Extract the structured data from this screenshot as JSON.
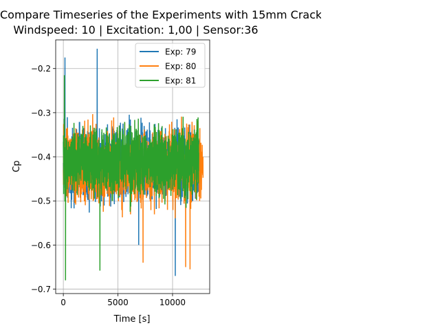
{
  "chart_data": {
    "type": "line",
    "title": "Compare Timeseries of the Experiments with 15mm Crack",
    "subtitle": "Windspeed: 10 | Excitation: 1,00 | Sensor:36",
    "xlabel": "Time [s]",
    "ylabel": "Cp",
    "xlim": [
      -700,
      13400
    ],
    "ylim": [
      -0.71,
      -0.135
    ],
    "xticks": [
      0,
      5000,
      10000
    ],
    "xtick_labels": [
      "0",
      "5000",
      "10000"
    ],
    "yticks": [
      -0.7,
      -0.6,
      -0.5,
      -0.4,
      -0.3,
      -0.2
    ],
    "ytick_labels": [
      "−0.7",
      "−0.6",
      "−0.5",
      "−0.4",
      "−0.3",
      "−0.2"
    ],
    "grid": true,
    "legend_position": "top-right",
    "series": [
      {
        "name": "Exp: 79",
        "color": "#1f77b4",
        "x_range": [
          0,
          12500
        ],
        "mean": -0.415,
        "amplitude": 0.11,
        "extremes": [
          {
            "x": 150,
            "y": -0.175
          },
          {
            "x": 3100,
            "y": -0.155
          },
          {
            "x": 10250,
            "y": -0.67
          },
          {
            "x": 6900,
            "y": -0.6
          }
        ]
      },
      {
        "name": "Exp: 80",
        "color": "#ff7f0e",
        "x_range": [
          0,
          12800
        ],
        "mean": -0.42,
        "amplitude": 0.11,
        "extremes": [
          {
            "x": 7300,
            "y": -0.64
          },
          {
            "x": 11200,
            "y": -0.65
          },
          {
            "x": 11600,
            "y": -0.655
          },
          {
            "x": 12500,
            "y": -0.335
          }
        ]
      },
      {
        "name": "Exp: 81",
        "color": "#2ca02c",
        "x_range": [
          0,
          12400
        ],
        "mean": -0.41,
        "amplitude": 0.1,
        "extremes": [
          {
            "x": 200,
            "y": -0.68
          },
          {
            "x": 3350,
            "y": -0.658
          },
          {
            "x": 100,
            "y": -0.215
          }
        ]
      }
    ]
  }
}
